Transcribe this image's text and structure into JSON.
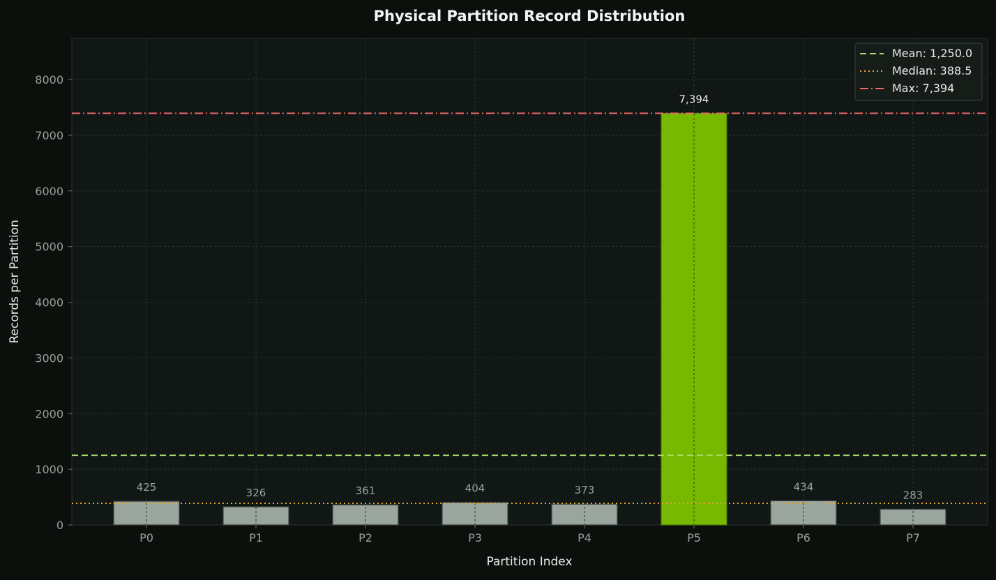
{
  "chart_data": {
    "type": "bar",
    "title": "Physical Partition Record Distribution",
    "xlabel": "Partition Index",
    "ylabel": "Records per Partition",
    "categories": [
      "P0",
      "P1",
      "P2",
      "P3",
      "P4",
      "P5",
      "P6",
      "P7"
    ],
    "values": [
      425,
      326,
      361,
      404,
      373,
      7394,
      434,
      283
    ],
    "value_labels": [
      "425",
      "326",
      "361",
      "404",
      "373",
      "7,394",
      "434",
      "283"
    ],
    "highlight_index": 5,
    "ylim": [
      0,
      8740
    ],
    "yticks": [
      0,
      1000,
      2000,
      3000,
      4000,
      5000,
      6000,
      7000,
      8000
    ],
    "grid": true,
    "legend_position": "top-right",
    "reference_lines": [
      {
        "label": "Mean: 1,250.0",
        "value": 1250.0,
        "style": "dashed",
        "color": "#a8d86a"
      },
      {
        "label": "Median: 388.5",
        "value": 388.5,
        "style": "dotted",
        "color": "#e0a832"
      },
      {
        "label": "Max: 7,394",
        "value": 7394,
        "style": "dashdot",
        "color": "#f26a6a"
      }
    ],
    "colors": {
      "background": "#0b100d",
      "plot_background": "#111714",
      "bar_normal": "#9aa59e",
      "bar_highlight": "#76b900",
      "grid": "#2a332d",
      "text": "#e8ece9",
      "tick_text": "#9aa39d"
    }
  }
}
